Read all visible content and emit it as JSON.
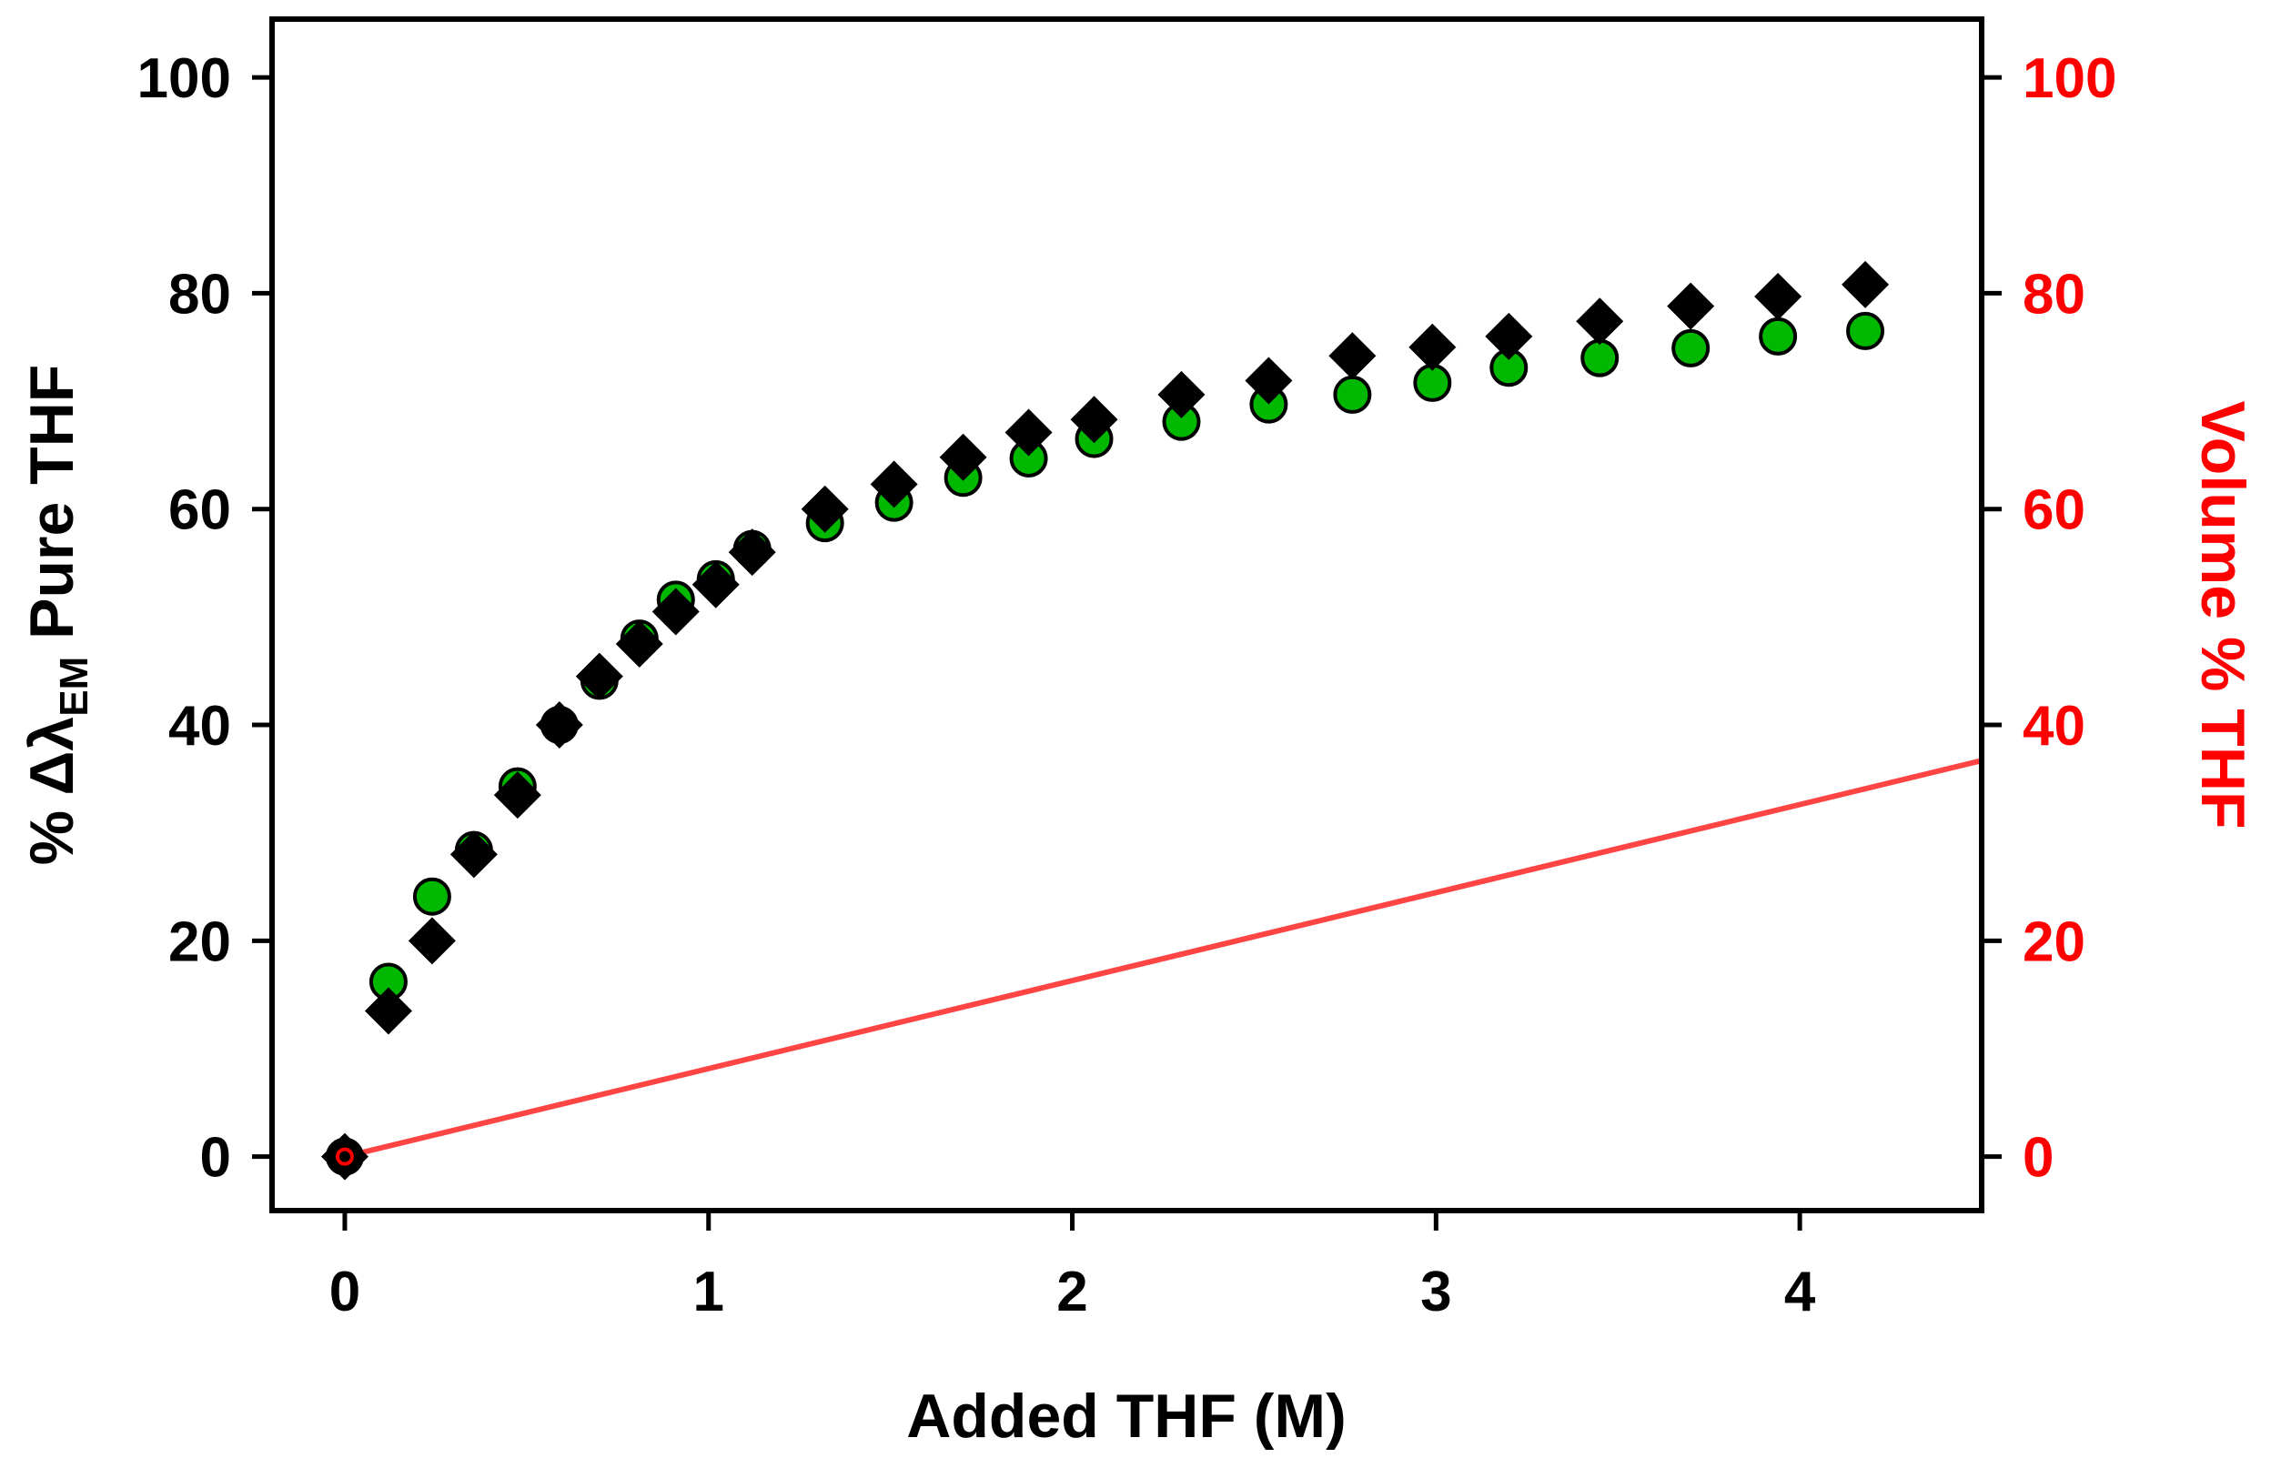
{
  "chart_data": {
    "type": "scatter",
    "title": "",
    "xlabel": "Added THF (M)",
    "ylabel": {
      "prefix": "% Δλ",
      "subscript": "EM",
      "suffix": " Pure THF"
    },
    "y2label": "Volume % THF",
    "xlim": [
      -0.2,
      4.5
    ],
    "ylim": [
      -5,
      105.4
    ],
    "y2lim": [
      -5,
      105.4
    ],
    "xticks": [
      0,
      1,
      2,
      3,
      4
    ],
    "yticks": [
      0,
      20,
      40,
      60,
      80,
      100
    ],
    "y2ticks": [
      0,
      20,
      40,
      60,
      80,
      100
    ],
    "grid": false,
    "colors": {
      "circles": "#00b800",
      "diamonds": "#000000",
      "line": "#ff4444",
      "y2": "#ff0000"
    },
    "series": [
      {
        "name": "circles",
        "marker": "circle",
        "axis": "left",
        "x": [
          0,
          0.12,
          0.24,
          0.355,
          0.475,
          0.59,
          0.7,
          0.81,
          0.91,
          1.02,
          1.12,
          1.32,
          1.51,
          1.7,
          1.88,
          2.06,
          2.3,
          2.54,
          2.77,
          2.99,
          3.2,
          3.45,
          3.7,
          3.94,
          4.18
        ],
        "y": [
          0,
          16.2,
          24.1,
          28.4,
          34.3,
          40,
          44.1,
          48,
          51.6,
          53.5,
          56.3,
          58.7,
          60.6,
          62.9,
          64.7,
          66.5,
          68.1,
          69.7,
          70.6,
          71.7,
          73.1,
          74,
          74.9,
          76,
          76.5
        ]
      },
      {
        "name": "diamonds",
        "marker": "diamond",
        "axis": "left",
        "x": [
          0,
          0.12,
          0.24,
          0.355,
          0.475,
          0.59,
          0.7,
          0.81,
          0.91,
          1.02,
          1.12,
          1.32,
          1.51,
          1.7,
          1.88,
          2.06,
          2.3,
          2.54,
          2.77,
          2.99,
          3.2,
          3.45,
          3.7,
          3.94,
          4.18
        ],
        "y": [
          0,
          13.5,
          20,
          28,
          33.5,
          40,
          44.5,
          47.5,
          50.5,
          53,
          56,
          60,
          62.3,
          64.8,
          67.1,
          68.3,
          70.6,
          71.9,
          74.2,
          75,
          76,
          77.4,
          78.8,
          79.7,
          80.8
        ]
      },
      {
        "name": "volume-percent",
        "marker": "line",
        "axis": "right",
        "x": [
          0,
          4.5
        ],
        "y": [
          0,
          36.7
        ]
      }
    ]
  }
}
